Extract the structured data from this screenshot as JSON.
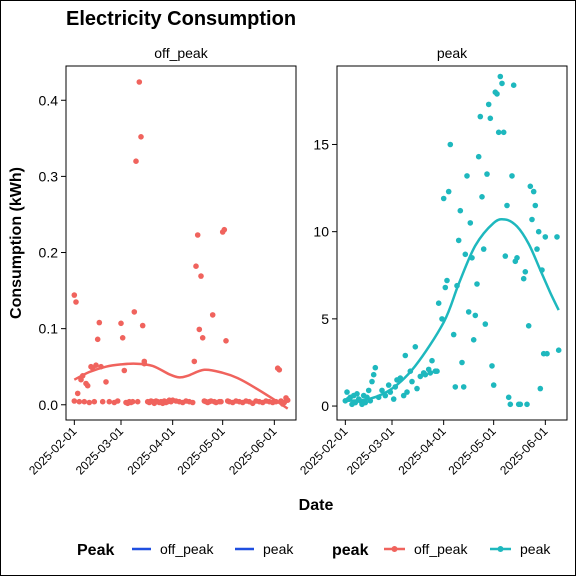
{
  "chart_data": {
    "type": "scatter",
    "title": "Electricity Consumption",
    "xlabel": "Date",
    "ylabel": "Consumption (kWh)",
    "colors": {
      "off_peak": "#F0635D",
      "peak": "#1EB8BE",
      "legend_line": "#1F4FE0"
    },
    "x_ticks": [
      "2025-02-01",
      "2025-03-01",
      "2025-04-01",
      "2025-05-01",
      "2025-06-01"
    ],
    "legends": [
      {
        "title": "Peak",
        "kind": "line",
        "entries": [
          "off_peak",
          "peak"
        ]
      },
      {
        "title": "peak",
        "kind": "point-line",
        "entries": [
          "off_peak",
          "peak"
        ]
      }
    ],
    "panels": [
      {
        "label": "off_peak",
        "series": "off_peak",
        "ylim": [
          -0.02,
          0.445
        ],
        "yticks": [
          "0.0",
          "0.1",
          "0.2",
          "0.3",
          "0.4"
        ],
        "ytick_values": [
          0,
          0.1,
          0.2,
          0.3,
          0.4
        ],
        "points": [
          [
            "2025-02-01",
            0.005
          ],
          [
            "2025-02-01",
            0.144
          ],
          [
            "2025-02-02",
            0.135
          ],
          [
            "2025-02-03",
            0.015
          ],
          [
            "2025-02-04",
            0.004
          ],
          [
            "2025-02-05",
            0.033
          ],
          [
            "2025-02-06",
            0.038
          ],
          [
            "2025-02-07",
            0.004
          ],
          [
            "2025-02-08",
            0.028
          ],
          [
            "2025-02-09",
            0.025
          ],
          [
            "2025-02-10",
            0.003
          ],
          [
            "2025-02-11",
            0.05
          ],
          [
            "2025-02-12",
            0.048
          ],
          [
            "2025-02-13",
            0.004
          ],
          [
            "2025-02-14",
            0.052
          ],
          [
            "2025-02-15",
            0.086
          ],
          [
            "2025-02-16",
            0.108
          ],
          [
            "2025-02-17",
            0.05
          ],
          [
            "2025-02-18",
            0.004
          ],
          [
            "2025-02-20",
            0.03
          ],
          [
            "2025-02-22",
            0.004
          ],
          [
            "2025-02-25",
            0.003
          ],
          [
            "2025-02-27",
            0.005
          ],
          [
            "2025-03-01",
            0.107
          ],
          [
            "2025-03-02",
            0.088
          ],
          [
            "2025-03-03",
            0.045
          ],
          [
            "2025-03-04",
            0.003
          ],
          [
            "2025-03-05",
            0.002
          ],
          [
            "2025-03-06",
            0.004
          ],
          [
            "2025-03-07",
            0.003
          ],
          [
            "2025-03-08",
            0.004
          ],
          [
            "2025-03-09",
            0.122
          ],
          [
            "2025-03-10",
            0.32
          ],
          [
            "2025-03-11",
            0.004
          ],
          [
            "2025-03-12",
            0.424
          ],
          [
            "2025-03-13",
            0.352
          ],
          [
            "2025-03-14",
            0.104
          ],
          [
            "2025-03-15",
            0.054
          ],
          [
            "2025-03-15",
            0.057
          ],
          [
            "2025-03-17",
            0.004
          ],
          [
            "2025-03-18",
            0.003
          ],
          [
            "2025-03-19",
            0.005
          ],
          [
            "2025-03-20",
            0.004
          ],
          [
            "2025-03-21",
            0.002
          ],
          [
            "2025-03-22",
            0.005
          ],
          [
            "2025-03-23",
            0.004
          ],
          [
            "2025-03-24",
            0.003
          ],
          [
            "2025-03-25",
            0.004
          ],
          [
            "2025-03-26",
            0.002
          ],
          [
            "2025-03-27",
            0.005
          ],
          [
            "2025-03-28",
            0.003
          ],
          [
            "2025-03-29",
            0.004
          ],
          [
            "2025-03-30",
            0.006
          ],
          [
            "2025-03-31",
            0.004
          ],
          [
            "2025-04-01",
            0.006
          ],
          [
            "2025-04-03",
            0.005
          ],
          [
            "2025-04-05",
            0.004
          ],
          [
            "2025-04-07",
            0.003
          ],
          [
            "2025-04-09",
            0.005
          ],
          [
            "2025-04-11",
            0.004
          ],
          [
            "2025-04-13",
            0.003
          ],
          [
            "2025-04-14",
            0.057
          ],
          [
            "2025-04-15",
            0.182
          ],
          [
            "2025-04-16",
            0.223
          ],
          [
            "2025-04-17",
            0.099
          ],
          [
            "2025-04-18",
            0.169
          ],
          [
            "2025-04-19",
            0.088
          ],
          [
            "2025-04-20",
            0.005
          ],
          [
            "2025-04-21",
            0.004
          ],
          [
            "2025-04-22",
            0.003
          ],
          [
            "2025-04-23",
            0.004
          ],
          [
            "2025-04-24",
            0.005
          ],
          [
            "2025-04-25",
            0.118
          ],
          [
            "2025-04-26",
            0.004
          ],
          [
            "2025-04-27",
            0.003
          ],
          [
            "2025-04-29",
            0.004
          ],
          [
            "2025-04-30",
            0.004
          ],
          [
            "2025-05-01",
            0.227
          ],
          [
            "2025-05-02",
            0.23
          ],
          [
            "2025-05-03",
            0.084
          ],
          [
            "2025-05-04",
            0.005
          ],
          [
            "2025-05-05",
            0.004
          ],
          [
            "2025-05-07",
            0.003
          ],
          [
            "2025-05-09",
            0.005
          ],
          [
            "2025-05-11",
            0.004
          ],
          [
            "2025-05-13",
            0.003
          ],
          [
            "2025-05-15",
            0.005
          ],
          [
            "2025-05-17",
            0.004
          ],
          [
            "2025-05-19",
            0.002
          ],
          [
            "2025-05-21",
            0.005
          ],
          [
            "2025-05-23",
            0.004
          ],
          [
            "2025-05-25",
            0.003
          ],
          [
            "2025-05-27",
            0.005
          ],
          [
            "2025-05-29",
            0.004
          ],
          [
            "2025-05-31",
            0.003
          ],
          [
            "2025-06-02",
            0.004
          ],
          [
            "2025-06-03",
            0.048
          ],
          [
            "2025-06-04",
            0.046
          ],
          [
            "2025-06-05",
            0.005
          ],
          [
            "2025-06-06",
            0.001
          ],
          [
            "2025-06-07",
            0.003
          ],
          [
            "2025-06-08",
            0.009
          ],
          [
            "2025-06-09",
            0.006
          ]
        ],
        "trend": [
          [
            "2025-02-01",
            0.033
          ],
          [
            "2025-02-10",
            0.043
          ],
          [
            "2025-02-20",
            0.05
          ],
          [
            "2025-03-01",
            0.053
          ],
          [
            "2025-03-10",
            0.054
          ],
          [
            "2025-03-20",
            0.051
          ],
          [
            "2025-03-30",
            0.04
          ],
          [
            "2025-04-05",
            0.036
          ],
          [
            "2025-04-10",
            0.038
          ],
          [
            "2025-04-20",
            0.046
          ],
          [
            "2025-05-01",
            0.042
          ],
          [
            "2025-05-10",
            0.035
          ],
          [
            "2025-05-20",
            0.023
          ],
          [
            "2025-05-31",
            0.008
          ],
          [
            "2025-06-09",
            -0.005
          ]
        ]
      },
      {
        "label": "peak",
        "series": "peak",
        "ylim": [
          -0.8,
          19.5
        ],
        "yticks": [
          "0",
          "5",
          "10",
          "15"
        ],
        "ytick_values": [
          0,
          5,
          10,
          15
        ],
        "points": [
          [
            "2025-02-01",
            0.3
          ],
          [
            "2025-02-02",
            0.8
          ],
          [
            "2025-02-03",
            0.4
          ],
          [
            "2025-02-04",
            0.5
          ],
          [
            "2025-02-05",
            0.1
          ],
          [
            "2025-02-06",
            0.6
          ],
          [
            "2025-02-07",
            0.2
          ],
          [
            "2025-02-08",
            0.7
          ],
          [
            "2025-02-09",
            0.4
          ],
          [
            "2025-02-10",
            0.3
          ],
          [
            "2025-02-11",
            0.1
          ],
          [
            "2025-02-12",
            0.6
          ],
          [
            "2025-02-13",
            0.2
          ],
          [
            "2025-02-14",
            0.5
          ],
          [
            "2025-02-15",
            0.9
          ],
          [
            "2025-02-16",
            0.3
          ],
          [
            "2025-02-17",
            1.4
          ],
          [
            "2025-02-18",
            1.8
          ],
          [
            "2025-02-19",
            2.2
          ],
          [
            "2025-02-21",
            0.5
          ],
          [
            "2025-02-23",
            0.9
          ],
          [
            "2025-02-25",
            0.6
          ],
          [
            "2025-02-27",
            1.2
          ],
          [
            "2025-02-28",
            0.8
          ],
          [
            "2025-03-02",
            0.4
          ],
          [
            "2025-03-03",
            1.1
          ],
          [
            "2025-03-04",
            1.5
          ],
          [
            "2025-03-06",
            1.6
          ],
          [
            "2025-03-08",
            0.6
          ],
          [
            "2025-03-09",
            2.9
          ],
          [
            "2025-03-10",
            0.8
          ],
          [
            "2025-03-12",
            2.0
          ],
          [
            "2025-03-13",
            1.4
          ],
          [
            "2025-03-15",
            3.4
          ],
          [
            "2025-03-16",
            1.0
          ],
          [
            "2025-03-18",
            1.7
          ],
          [
            "2025-03-20",
            1.9
          ],
          [
            "2025-03-21",
            1.8
          ],
          [
            "2025-03-23",
            2.1
          ],
          [
            "2025-03-24",
            1.9
          ],
          [
            "2025-03-25",
            2.6
          ],
          [
            "2025-03-27",
            2.0
          ],
          [
            "2025-03-28",
            2.0
          ],
          [
            "2025-03-29",
            5.9
          ],
          [
            "2025-03-31",
            5.0
          ],
          [
            "2025-04-01",
            11.9
          ],
          [
            "2025-04-02",
            6.8
          ],
          [
            "2025-04-03",
            7.2
          ],
          [
            "2025-04-04",
            12.3
          ],
          [
            "2025-04-05",
            15.0
          ],
          [
            "2025-04-07",
            4.1
          ],
          [
            "2025-04-08",
            1.1
          ],
          [
            "2025-04-09",
            6.9
          ],
          [
            "2025-04-10",
            9.5
          ],
          [
            "2025-04-11",
            11.2
          ],
          [
            "2025-04-12",
            2.5
          ],
          [
            "2025-04-13",
            1.1
          ],
          [
            "2025-04-14",
            8.7
          ],
          [
            "2025-04-15",
            13.2
          ],
          [
            "2025-04-16",
            5.4
          ],
          [
            "2025-04-17",
            10.5
          ],
          [
            "2025-04-18",
            8.5
          ],
          [
            "2025-04-19",
            3.8
          ],
          [
            "2025-04-20",
            5.2
          ],
          [
            "2025-04-21",
            7.0
          ],
          [
            "2025-04-22",
            14.3
          ],
          [
            "2025-04-23",
            16.6
          ],
          [
            "2025-04-24",
            12.0
          ],
          [
            "2025-04-25",
            9.0
          ],
          [
            "2025-04-26",
            4.7
          ],
          [
            "2025-04-27",
            13.3
          ],
          [
            "2025-04-28",
            17.3
          ],
          [
            "2025-04-29",
            16.5
          ],
          [
            "2025-04-30",
            2.3
          ],
          [
            "2025-05-01",
            1.2
          ],
          [
            "2025-05-02",
            18.0
          ],
          [
            "2025-05-03",
            17.9
          ],
          [
            "2025-05-04",
            15.7
          ],
          [
            "2025-05-05",
            18.9
          ],
          [
            "2025-05-06",
            18.5
          ],
          [
            "2025-05-07",
            15.7
          ],
          [
            "2025-05-08",
            8.6
          ],
          [
            "2025-05-09",
            11.5
          ],
          [
            "2025-05-10",
            0.5
          ],
          [
            "2025-05-11",
            0.1
          ],
          [
            "2025-05-12",
            13.2
          ],
          [
            "2025-05-13",
            18.4
          ],
          [
            "2025-05-14",
            8.3
          ],
          [
            "2025-05-15",
            8.5
          ],
          [
            "2025-05-16",
            0.1
          ],
          [
            "2025-05-17",
            0.1
          ],
          [
            "2025-05-19",
            7.3
          ],
          [
            "2025-05-20",
            7.7
          ],
          [
            "2025-05-21",
            0.1
          ],
          [
            "2025-05-22",
            4.6
          ],
          [
            "2025-05-23",
            12.6
          ],
          [
            "2025-05-24",
            10.7
          ],
          [
            "2025-05-25",
            12.3
          ],
          [
            "2025-05-26",
            11.5
          ],
          [
            "2025-05-27",
            9.0
          ],
          [
            "2025-05-28",
            10.0
          ],
          [
            "2025-05-29",
            1.0
          ],
          [
            "2025-05-30",
            7.8
          ],
          [
            "2025-05-31",
            3.0
          ],
          [
            "2025-06-01",
            9.7
          ],
          [
            "2025-06-02",
            3.0
          ],
          [
            "2025-06-08",
            9.7
          ],
          [
            "2025-06-09",
            3.2
          ]
        ],
        "trend": [
          [
            "2025-02-01",
            0.3
          ],
          [
            "2025-02-15",
            0.4
          ],
          [
            "2025-03-01",
            1.0
          ],
          [
            "2025-03-15",
            2.3
          ],
          [
            "2025-04-01",
            4.8
          ],
          [
            "2025-04-10",
            7.0
          ],
          [
            "2025-04-20",
            9.2
          ],
          [
            "2025-05-01",
            10.5
          ],
          [
            "2025-05-08",
            10.7
          ],
          [
            "2025-05-15",
            10.3
          ],
          [
            "2025-05-22",
            9.3
          ],
          [
            "2025-05-29",
            7.8
          ],
          [
            "2025-06-04",
            6.5
          ],
          [
            "2025-06-09",
            5.5
          ]
        ]
      }
    ]
  }
}
